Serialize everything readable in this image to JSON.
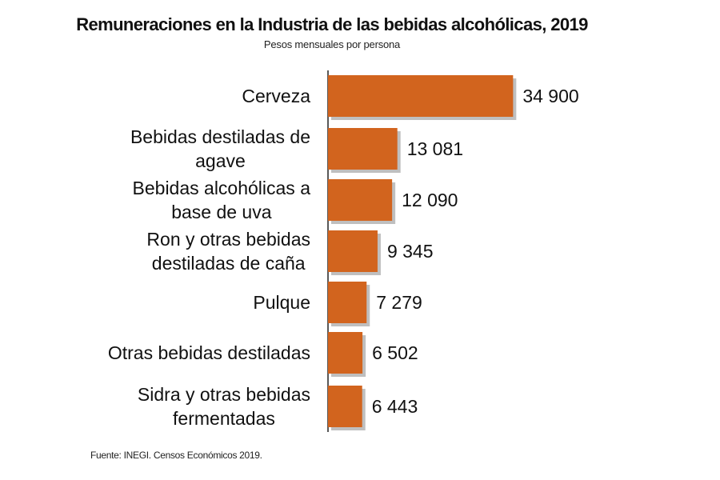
{
  "header": {
    "title": "Remuneraciones en la Industria de las bebidas alcohólicas, 2019",
    "subtitle": "Pesos mensuales por persona"
  },
  "footer": {
    "source": "Fuente: INEGI. Censos Económicos 2019."
  },
  "colors": {
    "bar": "#D2641E",
    "bar_shadow": "#8A8A8A",
    "axis": "#222222"
  },
  "chart_data": {
    "type": "bar",
    "orientation": "horizontal",
    "title": "Remuneraciones en la Industria de las bebidas alcohólicas, 2019",
    "subtitle": "Pesos mensuales por persona",
    "categories": [
      [
        "Cerveza"
      ],
      [
        "Bebidas destiladas de",
        "agave"
      ],
      [
        "Bebidas alcohólicas a",
        "base de uva"
      ],
      [
        "Ron y otras bebidas",
        "destiladas de caña"
      ],
      [
        "Pulque"
      ],
      [
        "Otras bebidas destiladas"
      ],
      [
        "Sidra y otras bebidas",
        "fermentadas"
      ]
    ],
    "values": [
      34900,
      13081,
      12090,
      9345,
      7279,
      6502,
      6443
    ],
    "value_labels": [
      "34 900",
      "13 081",
      "12 090",
      "9 345",
      "7 279",
      "6 502",
      "6 443"
    ],
    "xlim": [
      0,
      35000
    ],
    "grid": false,
    "legend": "none"
  }
}
